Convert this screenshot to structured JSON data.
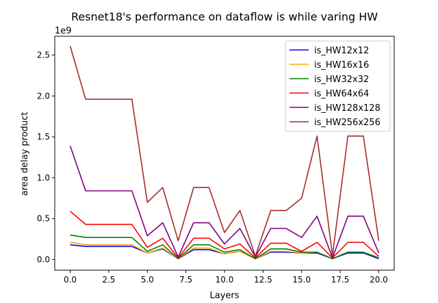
{
  "chart_data": {
    "type": "line",
    "title": "Resnet18's performance on dataflow is while varing HW",
    "xlabel": "Layers",
    "ylabel": "area delay product",
    "y_scale_label": "1e9",
    "xlim": [
      -1.0,
      21.0
    ],
    "ylim": [
      -0.13,
      2.73
    ],
    "xticks": [
      0.0,
      2.5,
      5.0,
      7.5,
      10.0,
      12.5,
      15.0,
      17.5,
      20.0
    ],
    "xtick_labels": [
      "0.0",
      "2.5",
      "5.0",
      "7.5",
      "10.0",
      "12.5",
      "15.0",
      "17.5",
      "20.0"
    ],
    "yticks": [
      0.0,
      0.5,
      1.0,
      1.5,
      2.0,
      2.5
    ],
    "ytick_labels": [
      "0.0",
      "0.5",
      "1.0",
      "1.5",
      "2.0",
      "2.5"
    ],
    "legend_position": "top-right",
    "grid": false,
    "x": [
      0,
      1,
      2,
      3,
      4,
      5,
      6,
      7,
      8,
      9,
      10,
      11,
      12,
      13,
      14,
      15,
      16,
      17,
      18,
      19,
      20
    ],
    "series": [
      {
        "name": "is_HW12x12",
        "color": "#0000ff",
        "values": [
          0.18,
          0.16,
          0.16,
          0.16,
          0.16,
          0.08,
          0.13,
          0.01,
          0.12,
          0.12,
          0.07,
          0.1,
          0.01,
          0.09,
          0.09,
          0.08,
          0.08,
          0.01,
          0.08,
          0.08,
          0.01
        ]
      },
      {
        "name": "is_HW16x16",
        "color": "#ffa500",
        "values": [
          0.21,
          0.18,
          0.18,
          0.18,
          0.18,
          0.08,
          0.14,
          0.01,
          0.14,
          0.14,
          0.07,
          0.1,
          0.01,
          0.1,
          0.1,
          0.08,
          0.09,
          0.01,
          0.09,
          0.09,
          0.02
        ]
      },
      {
        "name": "is_HW32x32",
        "color": "#008000",
        "values": [
          0.3,
          0.27,
          0.27,
          0.27,
          0.27,
          0.1,
          0.18,
          0.01,
          0.18,
          0.18,
          0.09,
          0.12,
          0.01,
          0.13,
          0.13,
          0.09,
          0.09,
          0.01,
          0.09,
          0.09,
          0.02
        ]
      },
      {
        "name": "is_HW64x64",
        "color": "#ff0000",
        "values": [
          0.59,
          0.43,
          0.43,
          0.43,
          0.43,
          0.15,
          0.26,
          0.02,
          0.26,
          0.26,
          0.13,
          0.19,
          0.02,
          0.2,
          0.2,
          0.1,
          0.21,
          0.02,
          0.21,
          0.21,
          0.04
        ]
      },
      {
        "name": "is_HW128x128",
        "color": "#800080",
        "values": [
          1.39,
          0.84,
          0.84,
          0.84,
          0.84,
          0.29,
          0.45,
          0.03,
          0.45,
          0.45,
          0.19,
          0.38,
          0.03,
          0.38,
          0.38,
          0.27,
          0.53,
          0.02,
          0.53,
          0.53,
          0.08
        ]
      },
      {
        "name": "is_HW256x256",
        "color": "#a52a2a",
        "values": [
          2.61,
          1.96,
          1.96,
          1.96,
          1.96,
          0.7,
          0.88,
          0.23,
          0.88,
          0.88,
          0.33,
          0.6,
          0.04,
          0.6,
          0.6,
          0.75,
          1.51,
          0.05,
          1.51,
          1.51,
          0.23
        ]
      }
    ]
  }
}
